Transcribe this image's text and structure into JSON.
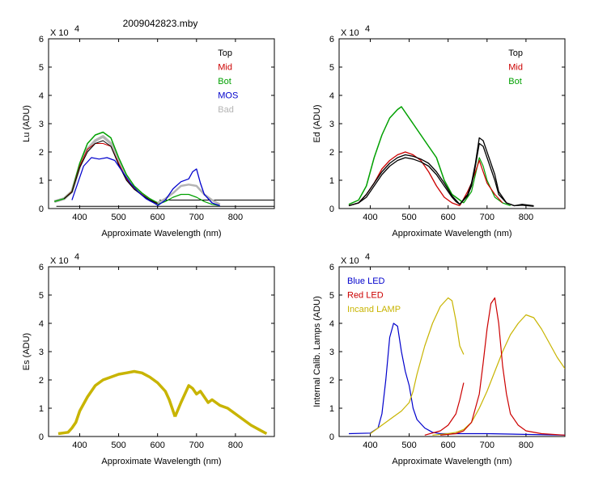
{
  "figure_title": "2009042823.mby",
  "colors": {
    "black": "#000000",
    "red": "#cc0000",
    "green": "#00a000",
    "blue": "#0000cc",
    "gray": "#b4b4b4",
    "yellow": "#c8b400"
  },
  "chart_data": [
    {
      "type": "line",
      "id": "lu",
      "xlabel": "Approximate Wavelength (nm)",
      "ylabel": "Lu (ADU)",
      "multiplier": "X 10",
      "multiplier_exp": "4",
      "xlim": [
        320,
        900
      ],
      "ylim": [
        0,
        6
      ],
      "xticks": [
        400,
        500,
        600,
        700,
        800
      ],
      "yticks": [
        0,
        1,
        2,
        3,
        4,
        5,
        6
      ],
      "legend_position": "top-right",
      "legend": [
        {
          "name": "Top",
          "color": "#000000"
        },
        {
          "name": "Mid",
          "color": "#cc0000"
        },
        {
          "name": "Bot",
          "color": "#00a000"
        },
        {
          "name": "MOS",
          "color": "#0000cc"
        },
        {
          "name": "Bad",
          "color": "#b4b4b4"
        }
      ],
      "series": [
        {
          "color": "#b4b4b4",
          "width": 3.5,
          "x": [
            335,
            360,
            380,
            400,
            420,
            440,
            460,
            480,
            500,
            520,
            540,
            560,
            580,
            600
          ],
          "y": [
            0.25,
            0.35,
            0.6,
            1.5,
            2.1,
            2.4,
            2.55,
            2.3,
            1.7,
            1.1,
            0.75,
            0.5,
            0.3,
            0.18
          ]
        },
        {
          "color": "#00a000",
          "width": 1.5,
          "x": [
            335,
            360,
            380,
            400,
            420,
            440,
            460,
            480,
            500,
            520,
            540,
            560,
            580,
            600
          ],
          "y": [
            0.25,
            0.35,
            0.6,
            1.6,
            2.3,
            2.6,
            2.7,
            2.5,
            1.8,
            1.2,
            0.8,
            0.55,
            0.35,
            0.2
          ]
        },
        {
          "color": "#cc0000",
          "width": 1,
          "x": [
            360,
            380,
            400,
            420,
            440,
            460,
            480,
            500,
            520,
            540,
            560,
            580,
            600
          ],
          "y": [
            0.35,
            0.6,
            1.5,
            2.1,
            2.3,
            2.3,
            2.2,
            1.6,
            1.05,
            0.7,
            0.5,
            0.3,
            0.18
          ]
        },
        {
          "color": "#000000",
          "width": 1,
          "x": [
            360,
            380,
            400,
            420,
            440,
            460,
            480,
            500,
            520,
            540,
            560,
            580,
            600
          ],
          "y": [
            0.35,
            0.58,
            1.45,
            2.0,
            2.3,
            2.4,
            2.2,
            1.55,
            1.0,
            0.68,
            0.48,
            0.3,
            0.17
          ]
        },
        {
          "color": "#0000cc",
          "width": 1.2,
          "x": [
            380,
            395,
            410,
            430,
            450,
            470,
            490,
            510,
            530,
            550,
            570,
            590,
            600
          ],
          "y": [
            0.3,
            0.9,
            1.5,
            1.8,
            1.75,
            1.8,
            1.7,
            1.3,
            0.9,
            0.6,
            0.35,
            0.2,
            0.12
          ]
        },
        {
          "color": "#000000",
          "width": 1,
          "x": [
            340,
            900
          ],
          "y": [
            0.08,
            0.08
          ]
        },
        {
          "color": "#000000",
          "width": 1,
          "x": [
            605,
            900
          ],
          "y": [
            0.3,
            0.3
          ]
        },
        {
          "color": "#00a000",
          "width": 1.2,
          "x": [
            600,
            620,
            640,
            660,
            680,
            700,
            720,
            740,
            760
          ],
          "y": [
            0.15,
            0.25,
            0.4,
            0.5,
            0.5,
            0.4,
            0.25,
            0.15,
            0.1
          ]
        },
        {
          "color": "#b4b4b4",
          "width": 2.5,
          "x": [
            600,
            620,
            640,
            660,
            680,
            700,
            720,
            740,
            760
          ],
          "y": [
            0.2,
            0.35,
            0.55,
            0.8,
            0.85,
            0.8,
            0.5,
            0.3,
            0.15
          ]
        },
        {
          "color": "#0000cc",
          "width": 1.3,
          "x": [
            600,
            620,
            640,
            660,
            680,
            690,
            700,
            710,
            720,
            740,
            760
          ],
          "y": [
            0.1,
            0.3,
            0.7,
            0.95,
            1.05,
            1.3,
            1.4,
            0.9,
            0.5,
            0.2,
            0.1
          ]
        }
      ]
    },
    {
      "type": "line",
      "id": "ed",
      "xlabel": "Approximate Wavelength (nm)",
      "ylabel": "Ed  (ADU)",
      "multiplier": "X 10",
      "multiplier_exp": "4",
      "xlim": [
        320,
        900
      ],
      "ylim": [
        0,
        6
      ],
      "xticks": [
        400,
        500,
        600,
        700,
        800
      ],
      "yticks": [
        0,
        1,
        2,
        3,
        4,
        5,
        6
      ],
      "legend_position": "top-right",
      "legend": [
        {
          "name": "Top",
          "color": "#000000"
        },
        {
          "name": "Mid",
          "color": "#cc0000"
        },
        {
          "name": "Bot",
          "color": "#00a000"
        }
      ],
      "series": [
        {
          "color": "#00a000",
          "width": 1.5,
          "x": [
            345,
            370,
            390,
            410,
            430,
            450,
            470,
            480,
            490,
            510,
            530,
            550,
            570,
            590,
            610,
            630,
            640
          ],
          "y": [
            0.15,
            0.3,
            0.8,
            1.8,
            2.6,
            3.2,
            3.5,
            3.6,
            3.4,
            3.0,
            2.6,
            2.2,
            1.8,
            1.0,
            0.5,
            0.3,
            0.2
          ]
        },
        {
          "color": "#00a000",
          "width": 1.2,
          "x": [
            640,
            660,
            670,
            680,
            690,
            700,
            710,
            720,
            740,
            760
          ],
          "y": [
            0.2,
            0.6,
            1.2,
            1.8,
            1.5,
            1.0,
            0.7,
            0.4,
            0.2,
            0.1
          ]
        },
        {
          "color": "#cc0000",
          "width": 1.3,
          "x": [
            345,
            370,
            390,
            410,
            430,
            450,
            470,
            490,
            510,
            530,
            550,
            570,
            590,
            610,
            630
          ],
          "y": [
            0.1,
            0.2,
            0.5,
            0.9,
            1.4,
            1.7,
            1.9,
            2.0,
            1.9,
            1.7,
            1.3,
            0.8,
            0.4,
            0.2,
            0.1
          ]
        },
        {
          "color": "#cc0000",
          "width": 1.2,
          "x": [
            630,
            650,
            660,
            670,
            680,
            690,
            700,
            720,
            740
          ],
          "y": [
            0.1,
            0.6,
            0.9,
            1.3,
            1.7,
            1.3,
            0.9,
            0.5,
            0.2
          ]
        },
        {
          "color": "#000000",
          "width": 1.3,
          "x": [
            345,
            370,
            390,
            410,
            430,
            450,
            470,
            490,
            510,
            530,
            550,
            570,
            590,
            610,
            620,
            630
          ],
          "y": [
            0.1,
            0.2,
            0.4,
            0.8,
            1.2,
            1.5,
            1.7,
            1.8,
            1.75,
            1.65,
            1.5,
            1.2,
            0.8,
            0.4,
            0.25,
            0.15
          ]
        },
        {
          "color": "#000000",
          "width": 1.3,
          "x": [
            345,
            370,
            390,
            410,
            430,
            450,
            470,
            490,
            510,
            530,
            550,
            570,
            590,
            610,
            620,
            630
          ],
          "y": [
            0.1,
            0.2,
            0.5,
            0.9,
            1.3,
            1.6,
            1.8,
            1.9,
            1.85,
            1.75,
            1.6,
            1.3,
            0.9,
            0.45,
            0.3,
            0.15
          ]
        },
        {
          "color": "#000000",
          "width": 1.3,
          "x": [
            630,
            650,
            660,
            670,
            680,
            690,
            700,
            710,
            720,
            730,
            750,
            770,
            790,
            820
          ],
          "y": [
            0.15,
            0.5,
            0.9,
            1.6,
            2.5,
            2.4,
            2.0,
            1.6,
            1.2,
            0.6,
            0.2,
            0.1,
            0.15,
            0.1
          ]
        },
        {
          "color": "#000000",
          "width": 1.3,
          "x": [
            630,
            650,
            660,
            670,
            680,
            690,
            700,
            710,
            720,
            730,
            750,
            770,
            790,
            820
          ],
          "y": [
            0.15,
            0.45,
            0.8,
            1.5,
            2.3,
            2.2,
            1.8,
            1.4,
            1.0,
            0.5,
            0.2,
            0.1,
            0.12,
            0.08
          ]
        }
      ]
    },
    {
      "type": "line",
      "id": "es",
      "xlabel": "Approximate Wavelength (nm)",
      "ylabel": "Es  (ADU)",
      "multiplier": "X 10",
      "multiplier_exp": "4",
      "xlim": [
        320,
        900
      ],
      "ylim": [
        0,
        6
      ],
      "xticks": [
        400,
        500,
        600,
        700,
        800
      ],
      "yticks": [
        0,
        1,
        2,
        3,
        4,
        5,
        6
      ],
      "legend": [],
      "series": [
        {
          "color": "#c8b400",
          "width": 3.5,
          "x": [
            345,
            370,
            380,
            390,
            400,
            420,
            440,
            460,
            480,
            500,
            520,
            540,
            560,
            580,
            600,
            620,
            630,
            640,
            645
          ],
          "y": [
            0.1,
            0.15,
            0.3,
            0.5,
            0.9,
            1.4,
            1.8,
            2.0,
            2.1,
            2.2,
            2.25,
            2.3,
            2.25,
            2.1,
            1.9,
            1.6,
            1.3,
            0.9,
            0.7
          ]
        },
        {
          "color": "#c8b400",
          "width": 3.5,
          "x": [
            645,
            660,
            670,
            680,
            690,
            700,
            710,
            720,
            730,
            740,
            760,
            780,
            800,
            820,
            840,
            860,
            880
          ],
          "y": [
            0.7,
            1.2,
            1.5,
            1.8,
            1.7,
            1.5,
            1.6,
            1.4,
            1.2,
            1.3,
            1.1,
            1.0,
            0.8,
            0.6,
            0.4,
            0.25,
            0.1
          ]
        }
      ]
    },
    {
      "type": "line",
      "id": "lamps",
      "xlabel": "Approximate Wavelength (nm)",
      "ylabel": "Internal Calib. Lamps (ADU)",
      "multiplier": "X 10",
      "multiplier_exp": "4",
      "xlim": [
        320,
        900
      ],
      "ylim": [
        0,
        6
      ],
      "xticks": [
        400,
        500,
        600,
        700,
        800
      ],
      "yticks": [
        0,
        1,
        2,
        3,
        4,
        5,
        6
      ],
      "legend_position": "top-left",
      "legend": [
        {
          "name": "Blue LED",
          "color": "#0000cc"
        },
        {
          "name": "Red LED",
          "color": "#cc0000"
        },
        {
          "name": "Incand LAMP",
          "color": "#c8b400"
        }
      ],
      "series": [
        {
          "color": "#0000cc",
          "width": 1.2,
          "x": [
            345,
            400,
            420,
            430,
            440,
            450,
            460,
            470,
            480,
            490,
            500,
            510,
            520,
            540,
            560,
            580,
            600,
            700,
            900
          ],
          "y": [
            0.1,
            0.12,
            0.3,
            0.8,
            2.0,
            3.5,
            4.0,
            3.9,
            3.0,
            2.3,
            1.8,
            1.0,
            0.6,
            0.3,
            0.15,
            0.1,
            0.1,
            0.1,
            0.05
          ]
        },
        {
          "color": "#c8b400",
          "width": 1.2,
          "x": [
            400,
            420,
            440,
            460,
            480,
            500,
            510,
            520,
            540,
            560,
            580,
            600,
            610,
            620,
            630,
            640
          ],
          "y": [
            0.1,
            0.3,
            0.5,
            0.7,
            0.9,
            1.2,
            1.6,
            2.2,
            3.2,
            4.0,
            4.6,
            4.9,
            4.8,
            4.1,
            3.2,
            2.9
          ]
        },
        {
          "color": "#c8b400",
          "width": 1.2,
          "x": [
            560,
            600,
            620,
            640,
            660,
            680,
            700,
            720,
            740,
            760,
            780,
            800,
            820,
            840,
            860,
            880,
            900
          ],
          "y": [
            0.05,
            0.1,
            0.15,
            0.25,
            0.5,
            1.0,
            1.6,
            2.3,
            3.0,
            3.6,
            4.0,
            4.3,
            4.2,
            3.8,
            3.3,
            2.8,
            2.4
          ]
        },
        {
          "color": "#cc0000",
          "width": 1.2,
          "x": [
            540,
            580,
            600,
            620,
            630,
            640
          ],
          "y": [
            0.05,
            0.2,
            0.4,
            0.8,
            1.3,
            1.9
          ]
        },
        {
          "color": "#cc0000",
          "width": 1.2,
          "x": [
            580,
            620,
            640,
            660,
            680,
            690,
            700,
            710,
            720,
            730,
            740,
            750,
            760,
            780,
            800,
            840,
            900
          ],
          "y": [
            0.05,
            0.1,
            0.2,
            0.5,
            1.5,
            2.6,
            3.8,
            4.7,
            4.9,
            4.0,
            2.5,
            1.5,
            0.8,
            0.4,
            0.2,
            0.1,
            0.05
          ]
        }
      ]
    }
  ]
}
